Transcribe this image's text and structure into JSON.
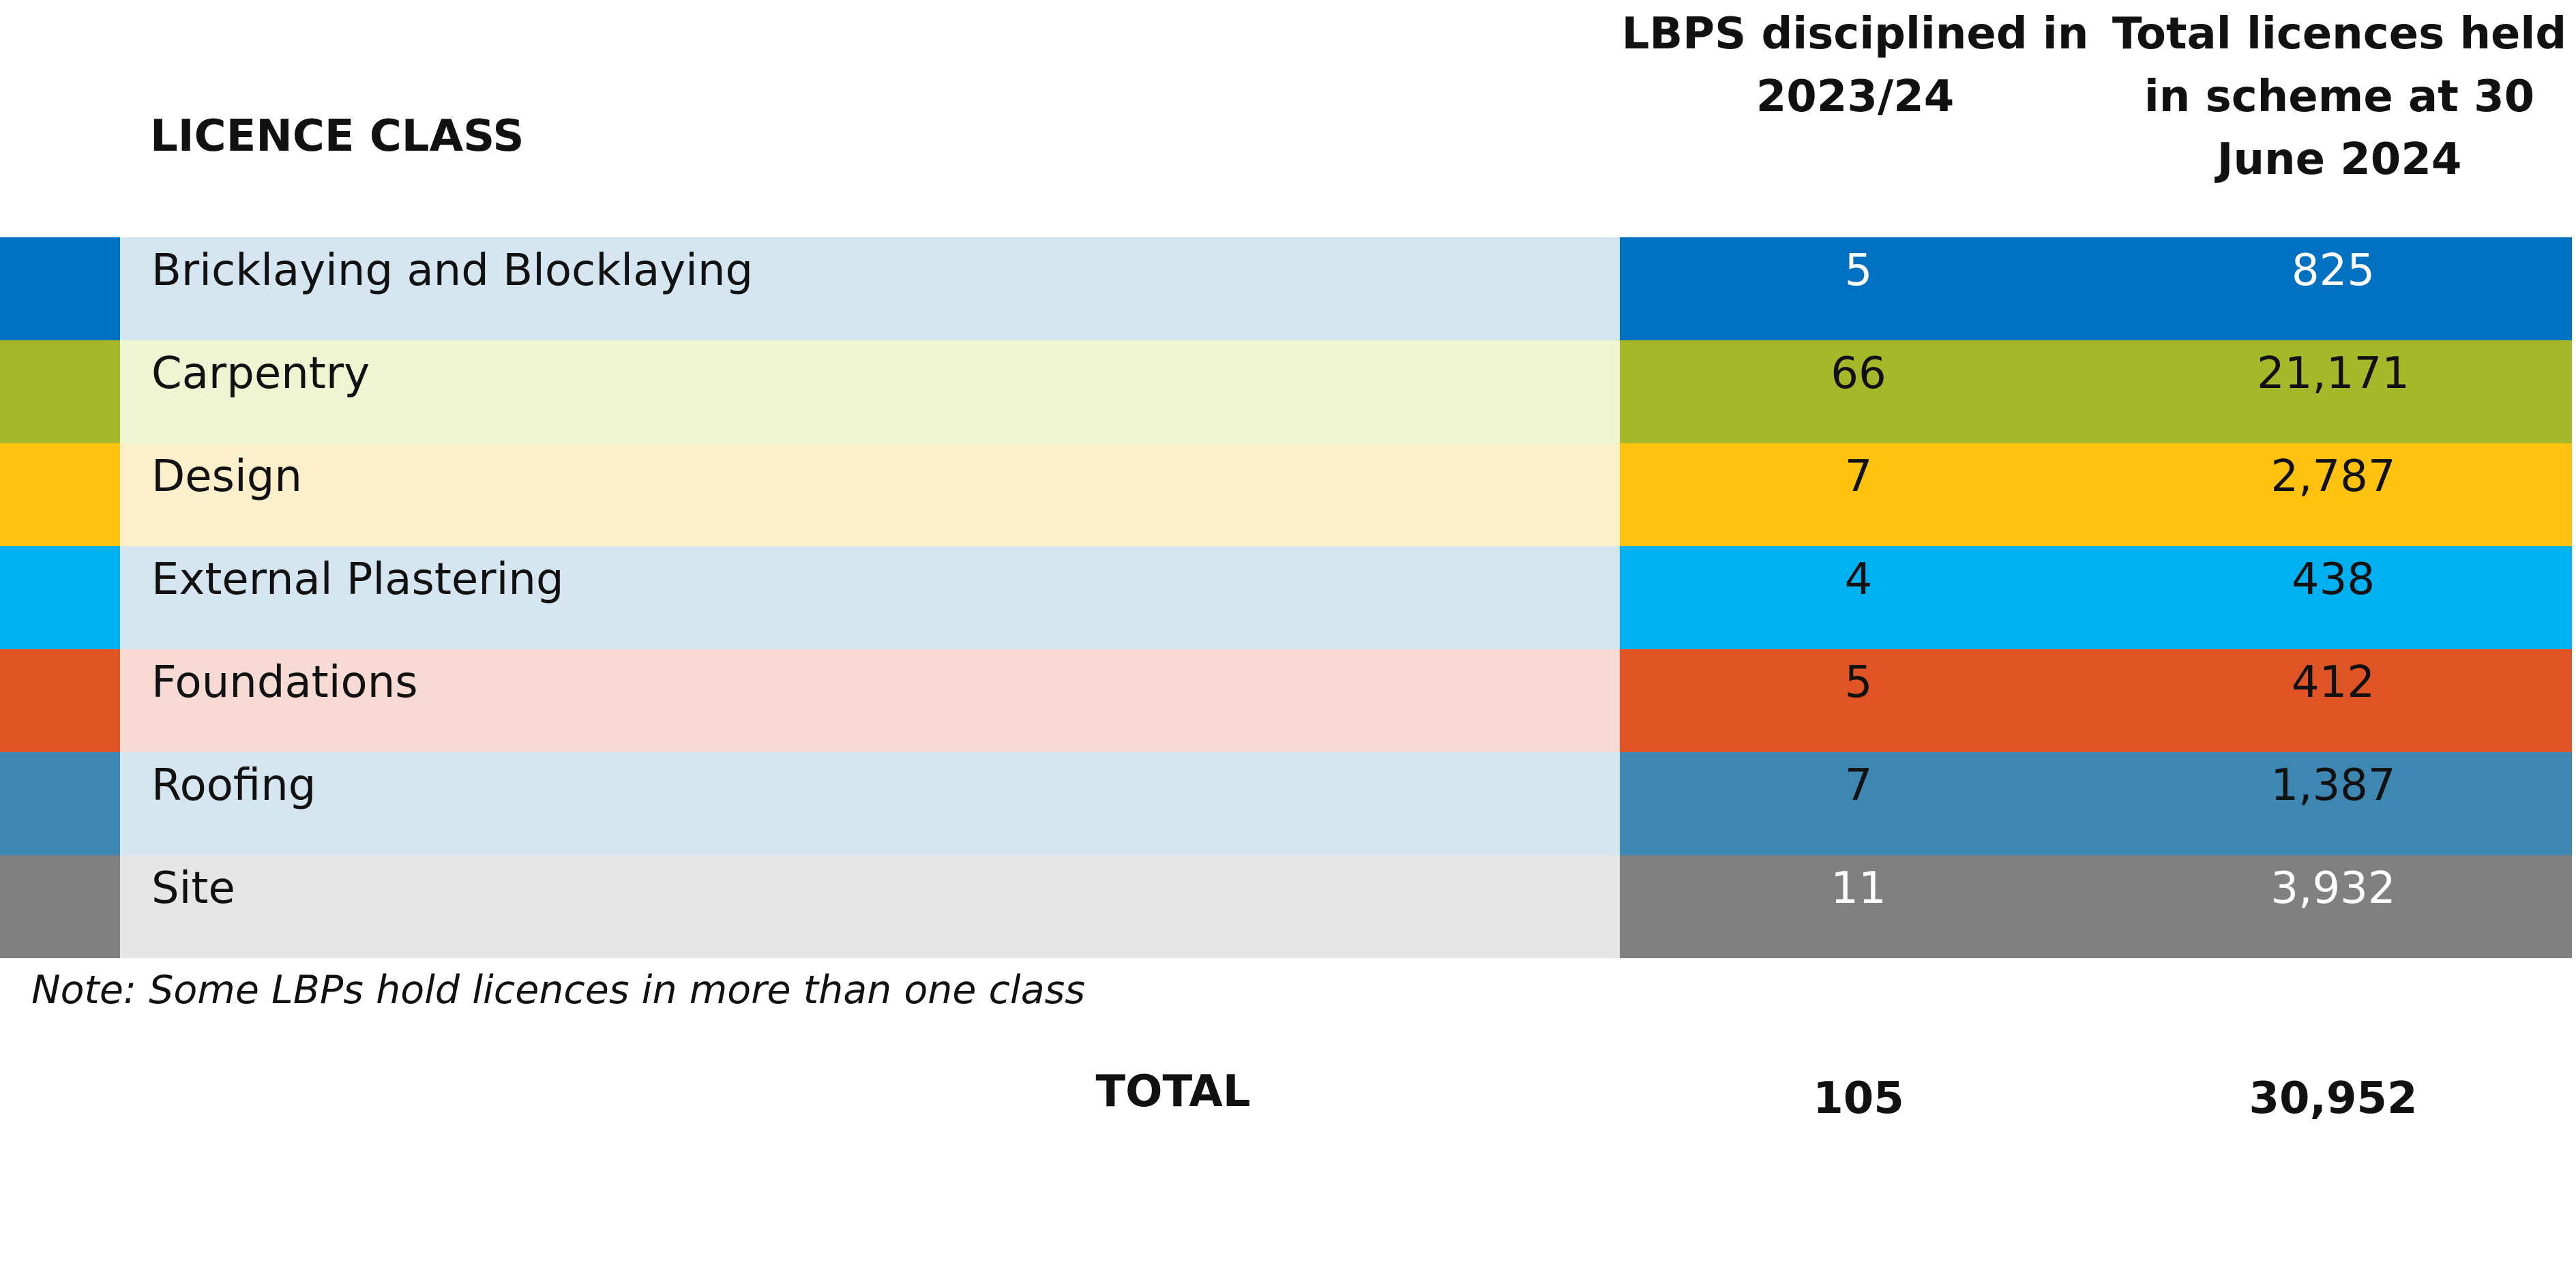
{
  "header": {
    "class_heading": "LICENCE CLASS",
    "disciplined_heading": "LBPS disciplined in 2023/24",
    "licences_heading": "Total licences held in scheme at 30 June 2024"
  },
  "rows": [
    {
      "label": "Bricklaying and Blocklaying",
      "disciplined": "5",
      "licences": "825",
      "color": "#0070C0",
      "tint": "#D5E6F0",
      "text_color": "#FFFFFF"
    },
    {
      "label": "Carpentry",
      "disciplined": "66",
      "licences": "21,171",
      "color": "#A5B829",
      "tint": "#EFF4D2",
      "text_color": "#111111"
    },
    {
      "label": "Design",
      "disciplined": "7",
      "licences": "2,787",
      "color": "#FFC20E",
      "tint": "#FCF0CC",
      "text_color": "#111111"
    },
    {
      "label": "External Plastering",
      "disciplined": "4",
      "licences": "438",
      "color": "#00B0F0",
      "tint": "#D5E6F0",
      "text_color": "#111111"
    },
    {
      "label": "Foundations",
      "disciplined": "5",
      "licences": "412",
      "color": "#E05426",
      "tint": "#F8DAD5",
      "text_color": "#111111"
    },
    {
      "label": "Roofing",
      "disciplined": "7",
      "licences": "1,387",
      "color": "#3F87B3",
      "tint": "#D5E6F0",
      "text_color": "#111111"
    },
    {
      "label": "Site",
      "disciplined": "11",
      "licences": "3,932",
      "color": "#808080",
      "tint": "#E6E6E6",
      "text_color": "#FFFFFF"
    }
  ],
  "note": "Note: Some LBPs hold licences in more than one class",
  "totals": {
    "label": "TOTAL",
    "disciplined": "105",
    "licences": "30,952"
  }
}
